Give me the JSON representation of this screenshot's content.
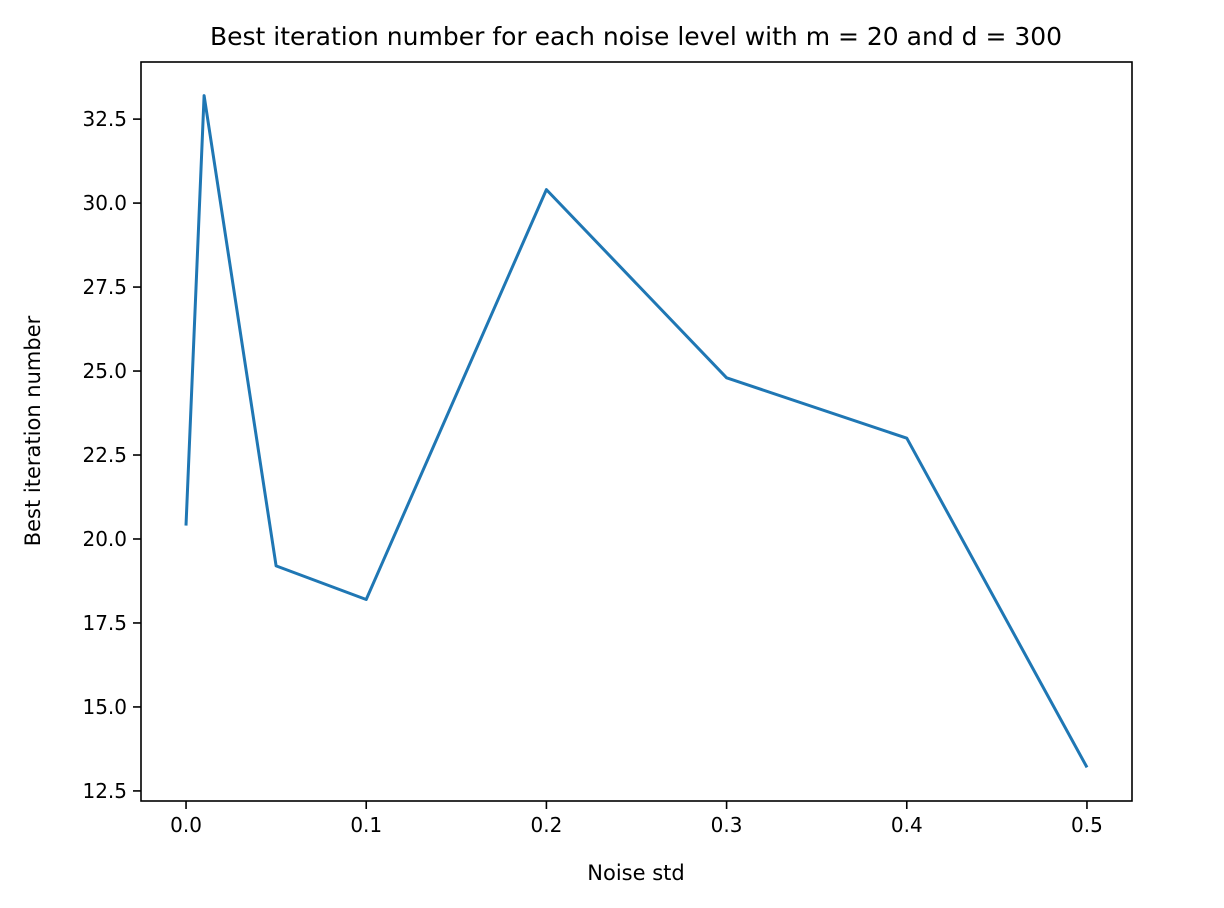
{
  "chart_data": {
    "type": "line",
    "title": "Best iteration number for each noise level with m = 20 and d = 300",
    "xlabel": "Noise std",
    "ylabel": "Best iteration number",
    "xlim": [
      -0.025,
      0.525
    ],
    "ylim": [
      12.2,
      34.2
    ],
    "xticks": [
      0.0,
      0.1,
      0.2,
      0.3,
      0.4,
      0.5
    ],
    "xtick_labels": [
      "0.0",
      "0.1",
      "0.2",
      "0.3",
      "0.4",
      "0.5"
    ],
    "yticks": [
      12.5,
      15.0,
      17.5,
      20.0,
      22.5,
      25.0,
      27.5,
      30.0,
      32.5
    ],
    "ytick_labels": [
      "12.5",
      "15.0",
      "17.5",
      "20.0",
      "22.5",
      "25.0",
      "27.5",
      "30.0",
      "32.5"
    ],
    "grid": false,
    "series": [
      {
        "color": "#1f77b4",
        "x": [
          0.0,
          0.01,
          0.05,
          0.1,
          0.2,
          0.3,
          0.4,
          0.5
        ],
        "y": [
          20.4,
          33.2,
          19.2,
          18.2,
          30.4,
          24.8,
          23.0,
          13.2
        ]
      }
    ]
  }
}
